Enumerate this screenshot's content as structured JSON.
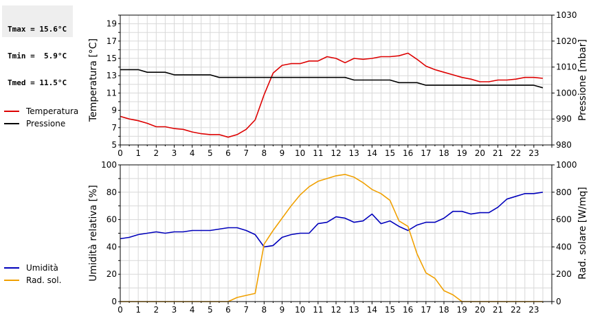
{
  "stats": [
    {
      "label": "Tmax =",
      "value": "15.6°C"
    },
    {
      "label": "Tmin =",
      "value": " 5.9°C"
    },
    {
      "label": "Tmed =",
      "value": "11.5°C"
    }
  ],
  "chart_data": [
    {
      "type": "line",
      "x_ticks": [
        "0",
        "1",
        "2",
        "3",
        "4",
        "5",
        "6",
        "7",
        "8",
        "9",
        "10",
        "11",
        "12",
        "13",
        "14",
        "15",
        "16",
        "17",
        "18",
        "19",
        "20",
        "21",
        "22",
        "23"
      ],
      "xlim": [
        0,
        24
      ],
      "ylabel": "Temperatura [°C]",
      "ylim": [
        5,
        20
      ],
      "y_ticks": [
        "5",
        "7",
        "9",
        "11",
        "13",
        "15",
        "17",
        "19"
      ],
      "y2label": "Pressione [mbar]",
      "y2lim": [
        980,
        1030
      ],
      "y2_ticks": [
        "980",
        "990",
        "1000",
        "1010",
        "1020",
        "1030"
      ],
      "grid": true,
      "legend_placement": "left",
      "series": [
        {
          "name": "Temperatura",
          "color": "#dd0000",
          "axis": "left",
          "x": [
            0,
            0.5,
            1,
            1.5,
            2,
            2.5,
            3,
            3.5,
            4,
            4.5,
            5,
            5.5,
            6,
            6.5,
            7,
            7.5,
            8,
            8.5,
            9,
            9.5,
            10,
            10.5,
            11,
            11.5,
            12,
            12.5,
            13,
            13.5,
            14,
            14.5,
            15,
            15.5,
            16,
            16.5,
            17,
            17.5,
            18,
            18.5,
            19,
            19.5,
            20,
            20.5,
            21,
            21.5,
            22,
            22.5,
            23,
            23.5
          ],
          "values": [
            8.3,
            8.0,
            7.8,
            7.5,
            7.1,
            7.1,
            6.9,
            6.8,
            6.5,
            6.3,
            6.2,
            6.2,
            5.9,
            6.2,
            6.8,
            7.9,
            10.8,
            13.3,
            14.2,
            14.4,
            14.4,
            14.7,
            14.7,
            15.2,
            15.0,
            14.5,
            15.0,
            14.9,
            15.0,
            15.2,
            15.2,
            15.3,
            15.6,
            14.9,
            14.1,
            13.7,
            13.4,
            13.1,
            12.8,
            12.6,
            12.3,
            12.3,
            12.5,
            12.5,
            12.6,
            12.8,
            12.8,
            12.7
          ]
        },
        {
          "name": "Pressione",
          "color": "#000000",
          "axis": "right",
          "x": [
            0,
            0.5,
            1,
            1.5,
            2,
            2.5,
            3,
            3.5,
            4,
            4.5,
            5,
            5.5,
            6,
            6.5,
            7,
            7.5,
            8,
            8.5,
            9,
            9.5,
            10,
            10.5,
            11,
            11.5,
            12,
            12.5,
            13,
            13.5,
            14,
            14.5,
            15,
            15.5,
            16,
            16.5,
            17,
            17.5,
            18,
            18.5,
            19,
            19.5,
            20,
            20.5,
            21,
            21.5,
            22,
            22.5,
            23,
            23.5
          ],
          "values": [
            1009,
            1009,
            1009,
            1008,
            1008,
            1008,
            1007,
            1007,
            1007,
            1007,
            1007,
            1006,
            1006,
            1006,
            1006,
            1006,
            1006,
            1006,
            1006,
            1006,
            1006,
            1006,
            1006,
            1006,
            1006,
            1006,
            1005,
            1005,
            1005,
            1005,
            1005,
            1004,
            1004,
            1004,
            1003,
            1003,
            1003,
            1003,
            1003,
            1003,
            1003,
            1003,
            1003,
            1003,
            1003,
            1003,
            1003,
            1002
          ]
        }
      ]
    },
    {
      "type": "line",
      "x_ticks": [
        "0",
        "1",
        "2",
        "3",
        "4",
        "5",
        "6",
        "7",
        "8",
        "9",
        "10",
        "11",
        "12",
        "13",
        "14",
        "15",
        "16",
        "17",
        "18",
        "19",
        "20",
        "21",
        "22",
        "23"
      ],
      "xlim": [
        0,
        24
      ],
      "ylabel": "Umidità relativa [%]",
      "ylim": [
        0,
        100
      ],
      "y_ticks": [
        "0",
        "20",
        "40",
        "60",
        "80",
        "100"
      ],
      "y2label": "Rad. solare [W/mq]",
      "y2lim": [
        0,
        1000
      ],
      "y2_ticks": [
        "0",
        "200",
        "400",
        "600",
        "800",
        "1000"
      ],
      "grid": true,
      "legend_placement": "left",
      "series": [
        {
          "name": "Umidità",
          "color": "#0000bb",
          "axis": "left",
          "x": [
            0,
            0.5,
            1,
            1.5,
            2,
            2.5,
            3,
            3.5,
            4,
            4.5,
            5,
            5.5,
            6,
            6.5,
            7,
            7.5,
            8,
            8.5,
            9,
            9.5,
            10,
            10.5,
            11,
            11.5,
            12,
            12.5,
            13,
            13.5,
            14,
            14.5,
            15,
            15.5,
            16,
            16.5,
            17,
            17.5,
            18,
            18.5,
            19,
            19.5,
            20,
            20.5,
            21,
            21.5,
            22,
            22.5,
            23,
            23.5
          ],
          "values": [
            46,
            47,
            49,
            50,
            51,
            50,
            51,
            51,
            52,
            52,
            52,
            53,
            54,
            54,
            52,
            49,
            40,
            41,
            47,
            49,
            50,
            50,
            57,
            58,
            62,
            61,
            58,
            59,
            64,
            57,
            59,
            55,
            52,
            56,
            58,
            58,
            61,
            66,
            66,
            64,
            65,
            65,
            69,
            75,
            77,
            79,
            79,
            80
          ]
        },
        {
          "name": "Rad. sol.",
          "color": "#f0a000",
          "axis": "right",
          "x": [
            0,
            1,
            2,
            3,
            4,
            5,
            6,
            6.5,
            7,
            7.5,
            8,
            8.5,
            9,
            9.5,
            10,
            10.5,
            11,
            11.5,
            12,
            12.5,
            13,
            13.5,
            14,
            14.5,
            15,
            15.5,
            16,
            16.5,
            17,
            17.5,
            18,
            18.5,
            19,
            20,
            21,
            22,
            23,
            23.5
          ],
          "values": [
            0,
            0,
            0,
            0,
            0,
            0,
            0,
            30,
            45,
            60,
            420,
            520,
            610,
            700,
            780,
            840,
            880,
            900,
            920,
            930,
            910,
            870,
            820,
            790,
            740,
            590,
            550,
            350,
            210,
            170,
            80,
            50,
            0,
            0,
            0,
            0,
            0,
            0
          ]
        }
      ]
    }
  ]
}
